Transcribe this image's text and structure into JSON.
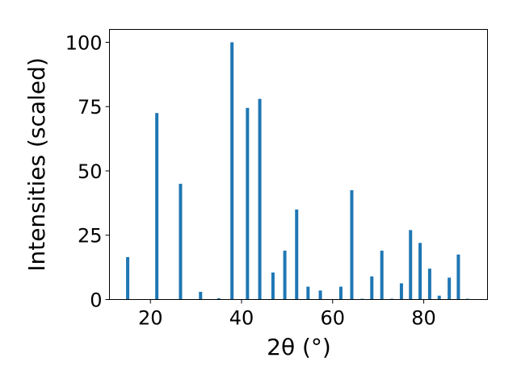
{
  "chart_data": {
    "type": "bar",
    "xlabel": "2θ (°)",
    "ylabel": "Intensities (scaled)",
    "xlim": [
      11,
      94
    ],
    "ylim": [
      0,
      105
    ],
    "x_ticks": [
      20,
      40,
      60,
      80
    ],
    "y_ticks": [
      0,
      25,
      50,
      75,
      100
    ],
    "bar_color": "#1f77b4",
    "grid": false,
    "x": [
      15,
      21.4,
      26.6,
      31,
      35,
      37.9,
      41.3,
      44,
      46.9,
      49.5,
      52.1,
      54.6,
      57.3,
      61.8,
      64.2,
      66.5,
      68.6,
      70.8,
      73,
      75.1,
      77.1,
      79.2,
      81.3,
      83.4,
      85.6,
      87.6,
      89.6
    ],
    "values": [
      16.5,
      72.5,
      45,
      3,
      0.5,
      100,
      74.5,
      78,
      10.5,
      19,
      35,
      5,
      3.5,
      5,
      42.5,
      0.3,
      9,
      19,
      0.3,
      6.3,
      27,
      22,
      12,
      1.5,
      8.5,
      17.5,
      0.3
    ]
  }
}
